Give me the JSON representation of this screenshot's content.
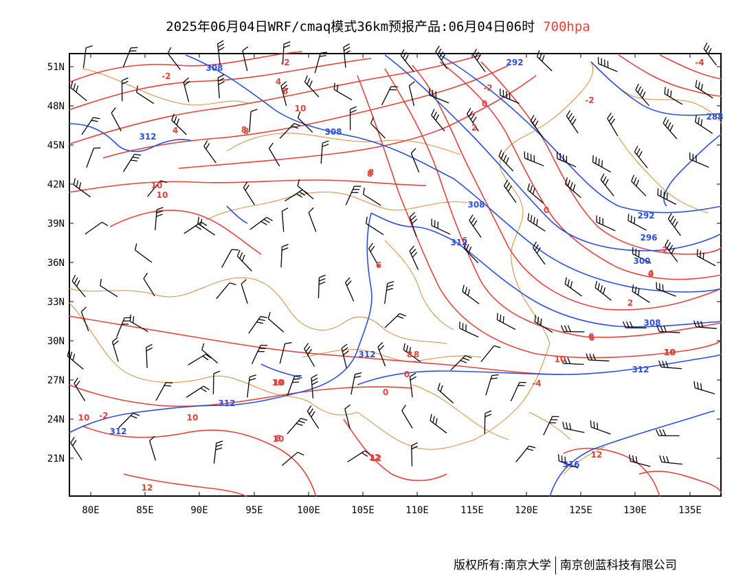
{
  "title": {
    "main": "2025年06月04日WRF/cmaq模式36km预报产品:06月04日06时",
    "level": "700hpa"
  },
  "colors": {
    "temperature_contour": "#e8403a",
    "height_contour": "#2a4fe0",
    "boundaries": "#d98a3a",
    "wind_barb": "#000000"
  },
  "axes": {
    "lat_labels": [
      "51N",
      "48N",
      "45N",
      "42N",
      "39N",
      "36N",
      "33N",
      "30N",
      "27N",
      "24N",
      "21N"
    ],
    "lon_labels": [
      "80E",
      "85E",
      "90E",
      "95E",
      "100E",
      "105E",
      "110E",
      "115E",
      "120E",
      "125E",
      "130E",
      "135E"
    ]
  },
  "contour_labels": {
    "temperature": [
      "-4",
      "-2",
      "-2",
      "-2",
      "-2",
      "-2",
      "0",
      "0",
      "2",
      "4",
      "4",
      "6",
      "8",
      "8",
      "10",
      "10",
      "10",
      "6",
      "8",
      "10",
      "12",
      "-4",
      "0",
      "-2",
      "2",
      "4",
      "6",
      "10",
      "10",
      "8",
      "12",
      "10",
      "10",
      "8",
      "8",
      "0",
      "10",
      "12",
      "8",
      "6",
      "10",
      "0",
      "6",
      "12",
      "10"
    ],
    "height": [
      "308",
      "292",
      "292",
      "312",
      "308",
      "308",
      "312",
      "296",
      "300",
      "308",
      "312",
      "312",
      "312",
      "312",
      "316",
      "288"
    ]
  },
  "footer": {
    "left": "版权所有:南京大学",
    "right": "南京创蓝科技有限公司"
  }
}
